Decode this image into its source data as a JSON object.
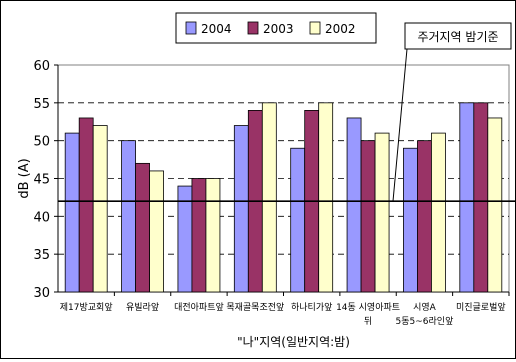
{
  "chart_data": {
    "type": "bar",
    "title": "",
    "categories": [
      "제17방교회앞",
      "유빌라앞",
      "대전아파트앞",
      "목재골목조전앞",
      "하나티가앞",
      "14동 시영아파트 뒤",
      "시영A 5동5~6라인앞",
      "미진글로벌앞"
    ],
    "series": [
      {
        "name": "2004",
        "color": "#9999ff",
        "values": [
          51,
          50,
          44,
          52,
          49,
          53,
          49,
          55
        ]
      },
      {
        "name": "2003",
        "color": "#993366",
        "values": [
          53,
          47,
          45,
          54,
          54,
          50,
          50,
          55
        ]
      },
      {
        "name": "2002",
        "color": "#ffffcc",
        "values": [
          52,
          46,
          45,
          55,
          55,
          51,
          51,
          53
        ]
      }
    ],
    "ylabel": "dB (A)",
    "xlabel": "\"나\"지역(일반지역:밤)",
    "ylim": [
      30,
      60
    ],
    "yticks": [
      30,
      35,
      40,
      45,
      50,
      55,
      60
    ],
    "grid": true,
    "legend_position": "top",
    "reference_line": {
      "value": 42,
      "label": "주거지역 밤기준"
    }
  }
}
